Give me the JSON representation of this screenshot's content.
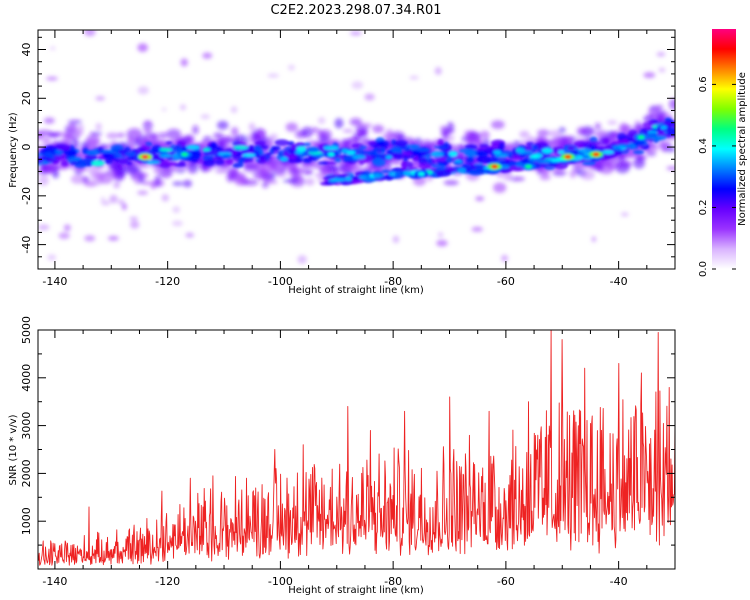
{
  "chart_data": [
    {
      "type": "heatmap",
      "title": "C2E2.2023.298.07.34.R01",
      "xlabel": "Height of straight line (km)",
      "ylabel": "Frequency (Hz)",
      "xlim": [
        -143,
        -30
      ],
      "ylim": [
        -50,
        48
      ],
      "x_ticks": [
        -140,
        -120,
        -100,
        -80,
        -60,
        -40
      ],
      "y_ticks": [
        -40,
        -20,
        0,
        20,
        40
      ],
      "colorbar": {
        "label": "Normalized spectral amplitude",
        "range": [
          0,
          0.78
        ],
        "ticks": [
          "0.0",
          "0.2",
          "0.4",
          "0.6"
        ],
        "tick_values": [
          0,
          0.2,
          0.4,
          0.6
        ],
        "colormap": [
          "#ffffff",
          "#d9b3ff",
          "#9a33ff",
          "#6600ff",
          "#0000ff",
          "#0080ff",
          "#00ffff",
          "#00ff80",
          "#80ff00",
          "#ffff00",
          "#ff8000",
          "#ff0000",
          "#ff0080"
        ]
      },
      "band_center": [
        [
          -143,
          -3
        ],
        [
          -130,
          -4
        ],
        [
          -120,
          -3
        ],
        [
          -110,
          -3
        ],
        [
          -100,
          -3
        ],
        [
          -90,
          -3
        ],
        [
          -80,
          -2
        ],
        [
          -70,
          -3
        ],
        [
          -60,
          -3
        ],
        [
          -50,
          -3
        ],
        [
          -40,
          0
        ],
        [
          -35,
          4
        ],
        [
          -31,
          8
        ]
      ],
      "band_halfwidth_hz": 6,
      "secondary_track": [
        [
          -92,
          -14
        ],
        [
          -80,
          -11
        ],
        [
          -70,
          -10
        ],
        [
          -60,
          -8
        ],
        [
          -50,
          -5
        ],
        [
          -43,
          -3
        ],
        [
          -38,
          1
        ],
        [
          -33,
          6
        ],
        [
          -31,
          10
        ]
      ],
      "hot_spots": [
        {
          "x": -124,
          "y": -4,
          "value": 0.75
        },
        {
          "x": -117,
          "y": -3,
          "value": 0.45
        },
        {
          "x": -91,
          "y": -3,
          "value": 0.4
        },
        {
          "x": -75,
          "y": -11,
          "value": 0.4
        },
        {
          "x": -62,
          "y": -8,
          "value": 0.7
        },
        {
          "x": -56,
          "y": -8,
          "value": 0.45
        },
        {
          "x": -49,
          "y": -4,
          "value": 0.7
        },
        {
          "x": -44,
          "y": -3,
          "value": 0.7
        },
        {
          "x": -36,
          "y": 4,
          "value": 0.45
        },
        {
          "x": -32,
          "y": 8,
          "value": 0.35
        }
      ]
    },
    {
      "type": "line",
      "xlabel": "Height of straight line (km)",
      "ylabel": "SNR (10 * v/v)",
      "xlim": [
        -143,
        -30
      ],
      "ylim": [
        0,
        5000
      ],
      "x_ticks": [
        -140,
        -120,
        -100,
        -80,
        -60,
        -40
      ],
      "y_ticks": [
        1000,
        2000,
        3000,
        4000,
        5000
      ],
      "color": "#ee2222",
      "envelope": [
        [
          -143,
          400
        ],
        [
          -135,
          500
        ],
        [
          -128,
          550
        ],
        [
          -123,
          800
        ],
        [
          -118,
          1100
        ],
        [
          -110,
          1300
        ],
        [
          -100,
          1600
        ],
        [
          -90,
          1800
        ],
        [
          -80,
          1800
        ],
        [
          -70,
          1900
        ],
        [
          -60,
          2100
        ],
        [
          -52,
          2600
        ],
        [
          -45,
          2600
        ],
        [
          -40,
          2700
        ],
        [
          -35,
          2800
        ],
        [
          -30,
          2900
        ]
      ],
      "peaks": [
        [
          -134,
          1300
        ],
        [
          -129,
          820
        ],
        [
          -121,
          1630
        ],
        [
          -116,
          1900
        ],
        [
          -112,
          1950
        ],
        [
          -101,
          2500
        ],
        [
          -96,
          2600
        ],
        [
          -88,
          3400
        ],
        [
          -84,
          2900
        ],
        [
          -78,
          3300
        ],
        [
          -70,
          3600
        ],
        [
          -63,
          3300
        ],
        [
          -56,
          3500
        ],
        [
          -52,
          5000
        ],
        [
          -50,
          4800
        ],
        [
          -46,
          4200
        ],
        [
          -40,
          4300
        ],
        [
          -36,
          4100
        ],
        [
          -33,
          4950
        ],
        [
          -31,
          3800
        ]
      ]
    }
  ]
}
